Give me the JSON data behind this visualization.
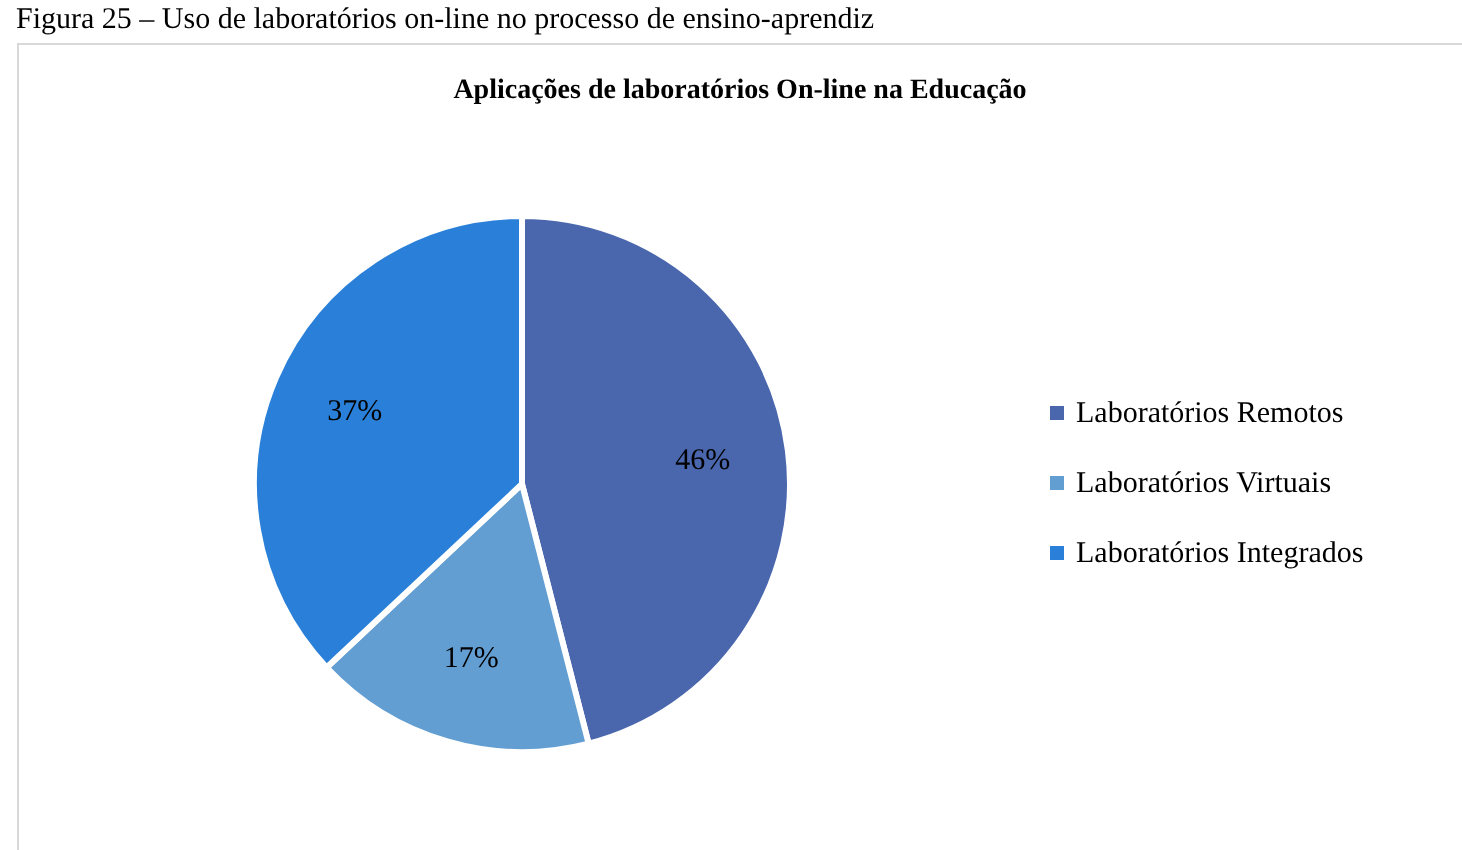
{
  "chart_data": {
    "type": "pie",
    "title": "Aplicações de laboratórios On-line na Educação",
    "annotations": [
      "Figura 25 – Uso de laboratórios on-line no processo de ensino-aprendiz"
    ],
    "categories": [
      "Laboratórios Remotos",
      "Laboratórios Virtuais",
      "Laboratórios Integrados"
    ],
    "values": [
      46,
      17,
      37
    ],
    "colors": [
      "#4a67ae",
      "#639ed2",
      "#2a80d8"
    ],
    "value_labels": [
      "46%",
      "17%",
      "37%"
    ],
    "legend": "right"
  }
}
